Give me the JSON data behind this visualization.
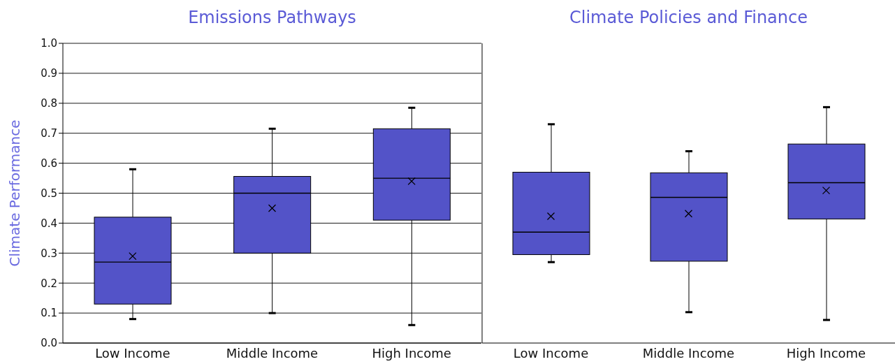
{
  "chart_data": [
    {
      "type": "box",
      "title": "Emissions Pathways",
      "ylabel": "Climate Performance",
      "categories": [
        "Low Income",
        "Middle Income",
        "High Income"
      ],
      "color": "#5353c8",
      "marker": "cross",
      "grid": "y",
      "ylim": [
        0,
        1
      ],
      "yticks": [
        {
          "value": 0,
          "label": "0.0"
        },
        0.1,
        0.2,
        0.3,
        0.4,
        0.5,
        0.6,
        0.7,
        0.8,
        0.9,
        {
          "value": 1,
          "label": "1.0"
        }
      ],
      "boxes": [
        {
          "low": 0.08,
          "q1": 0.13,
          "median": 0.27,
          "q3": 0.42,
          "high": 0.58,
          "mean": 0.29
        },
        {
          "low": 0.1,
          "q1": 0.3,
          "median": 0.5,
          "q3": 0.556,
          "high": 0.715,
          "mean": 0.45
        },
        {
          "low": 0.06,
          "q1": 0.41,
          "median": 0.55,
          "q3": 0.715,
          "high": 0.785,
          "mean": 0.54
        }
      ]
    },
    {
      "type": "box",
      "title": "Climate Policies and Finance",
      "categories": [
        "Low Income",
        "Middle Income",
        "High Income"
      ],
      "color": "#5353c8",
      "marker": "cross",
      "grid": "y",
      "tick_labels": "x",
      "ylim": [
        0,
        1
      ],
      "yticks": [
        0,
        0.1,
        0.2,
        0.3,
        0.4,
        0.5,
        0.6,
        0.7,
        0.8,
        0.9,
        1
      ],
      "boxes": [
        {
          "low": 0.27,
          "q1": 0.295,
          "median": 0.37,
          "q3": 0.57,
          "high": 0.73,
          "mean": 0.423
        },
        {
          "low": 0.103,
          "q1": 0.273,
          "median": 0.486,
          "q3": 0.568,
          "high": 0.64,
          "mean": 0.432
        },
        {
          "low": 0.077,
          "q1": 0.414,
          "median": 0.535,
          "q3": 0.664,
          "high": 0.787,
          "mean": 0.509
        }
      ]
    }
  ]
}
